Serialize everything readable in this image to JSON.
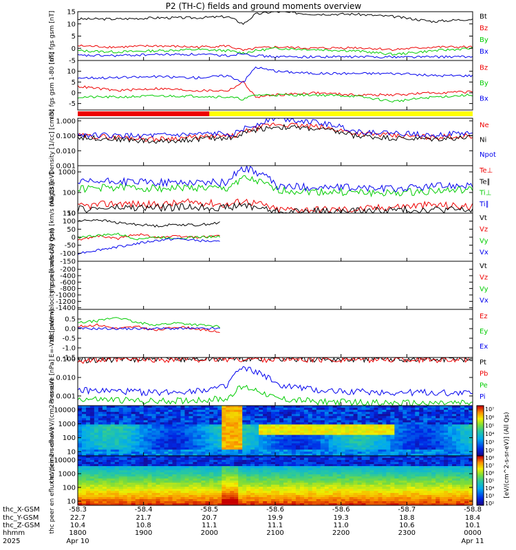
{
  "title": "P2 (TH-C) fields and ground moments overview",
  "colors": {
    "black": "#000000",
    "red": "#ee0000",
    "green": "#00cc00",
    "blue": "#0000ee",
    "yellow": "#ffff00"
  },
  "status_bar": [
    {
      "from": "1800",
      "to": "2000",
      "color": "#ee0000"
    },
    {
      "from": "2000",
      "to": "0000",
      "color": "#ffff00"
    }
  ],
  "chart_data": [
    {
      "type": "line",
      "ylabel": "thc fgs gsm [nT]",
      "ylim": [
        -5,
        15
      ],
      "yticks": [
        "15",
        "10",
        "5",
        "0",
        "-5"
      ],
      "ytick_values": [
        15,
        10,
        5,
        0,
        -5
      ],
      "series": [
        {
          "name": "Bt",
          "color": "#000000",
          "x": [
            0,
            0.1,
            0.2,
            0.3,
            0.38,
            0.42,
            0.45,
            0.5,
            0.6,
            0.7,
            0.8,
            0.9,
            1.0
          ],
          "values": [
            12,
            12,
            12.5,
            12.5,
            13,
            10,
            14,
            15,
            14,
            14,
            13,
            11,
            12
          ]
        },
        {
          "name": "Bz",
          "color": "#ee0000",
          "x": [
            0,
            0.1,
            0.2,
            0.3,
            0.38,
            0.42,
            0.45,
            0.5,
            0.6,
            0.7,
            0.8,
            0.9,
            1.0
          ],
          "values": [
            1,
            0.5,
            1,
            0.5,
            1,
            -1,
            0,
            0.5,
            0,
            0.3,
            -0.5,
            0.5,
            0.5
          ]
        },
        {
          "name": "By",
          "color": "#00cc00",
          "x": [
            0,
            0.1,
            0.2,
            0.3,
            0.38,
            0.42,
            0.45,
            0.5,
            0.6,
            0.7,
            0.8,
            0.9,
            1.0
          ],
          "values": [
            -1,
            -1.5,
            -1,
            -0.5,
            -1,
            -2,
            -1,
            0,
            -0.5,
            -1,
            -2.5,
            -1,
            0
          ]
        },
        {
          "name": "Bx",
          "color": "#0000ee",
          "x": [
            0,
            0.1,
            0.2,
            0.3,
            0.38,
            0.42,
            0.45,
            0.5,
            0.6,
            0.7,
            0.8,
            0.9,
            1.0
          ],
          "values": [
            -3,
            -3,
            -2.5,
            -2.5,
            -3,
            -2,
            -3,
            -3.5,
            -3.5,
            -3.5,
            -3.5,
            -3.5,
            -3.5
          ]
        }
      ]
    },
    {
      "type": "line",
      "ylabel": "thc fgs gsm 1-80 [nT]",
      "ylim": [
        -8,
        15
      ],
      "yticks": [
        "10",
        "5",
        "0",
        "-5"
      ],
      "ytick_values": [
        10,
        5,
        0,
        -5
      ],
      "series": [
        {
          "name": "Bz",
          "color": "#ee0000",
          "x": [
            0,
            0.1,
            0.2,
            0.3,
            0.38,
            0.42,
            0.45,
            0.5,
            0.6,
            0.7,
            0.8,
            0.9,
            1.0
          ],
          "values": [
            3,
            1,
            2,
            1,
            1,
            5,
            -2,
            -1,
            0,
            -1,
            -1,
            0,
            0.5
          ]
        },
        {
          "name": "By",
          "color": "#00cc00",
          "x": [
            0,
            0.1,
            0.2,
            0.3,
            0.38,
            0.42,
            0.45,
            0.5,
            0.6,
            0.7,
            0.8,
            0.9,
            1.0
          ],
          "values": [
            -2,
            -2,
            -1.5,
            -1.5,
            -2,
            -3,
            -1,
            -1,
            -1,
            -1.5,
            -4,
            -2,
            -1
          ]
        },
        {
          "name": "Bx",
          "color": "#0000ee",
          "x": [
            0,
            0.1,
            0.2,
            0.3,
            0.38,
            0.42,
            0.45,
            0.5,
            0.6,
            0.7,
            0.8,
            0.9,
            1.0
          ],
          "values": [
            7,
            7,
            7.5,
            7,
            8,
            5,
            12,
            10,
            9,
            9,
            9,
            8,
            8
          ]
        }
      ]
    },
    {
      "type": "line",
      "ylabel": "Density [1/cc] [cm-3]",
      "yscale": "log",
      "ylim": [
        0.001,
        1.5
      ],
      "yticks": [
        "1.000",
        "0.100",
        "0.010",
        "0.001"
      ],
      "ytick_values": [
        1.0,
        0.1,
        0.01,
        0.001
      ],
      "series": [
        {
          "name": "Ne",
          "color": "#ee0000",
          "x": [
            0,
            0.1,
            0.2,
            0.3,
            0.4,
            0.45,
            0.5,
            0.6,
            0.7,
            0.8,
            0.9,
            1.0
          ],
          "values": [
            0.1,
            0.08,
            0.06,
            0.08,
            0.1,
            0.3,
            0.6,
            0.4,
            0.15,
            0.1,
            0.08,
            0.1
          ]
        },
        {
          "name": "Ni",
          "color": "#000000",
          "x": [
            0,
            0.1,
            0.2,
            0.3,
            0.4,
            0.45,
            0.5,
            0.6,
            0.7,
            0.8,
            0.9,
            1.0
          ],
          "values": [
            0.08,
            0.06,
            0.04,
            0.06,
            0.08,
            0.25,
            0.4,
            0.3,
            0.1,
            0.07,
            0.06,
            0.08
          ]
        },
        {
          "name": "Npot",
          "color": "#0000ee",
          "x": [
            0,
            0.1,
            0.2,
            0.3,
            0.4,
            0.45,
            0.5,
            0.6,
            0.7,
            0.8,
            0.9,
            1.0
          ],
          "values": [
            0.12,
            0.1,
            0.1,
            0.12,
            0.15,
            0.5,
            1.5,
            0.8,
            0.2,
            0.15,
            0.12,
            0.15
          ]
        }
      ]
    },
    {
      "type": "line",
      "ylabel": "magt3 [eV]",
      "yscale": "log",
      "ylim": [
        10,
        2000
      ],
      "yticks": [
        "1000",
        "100",
        "10"
      ],
      "ytick_values": [
        1000,
        100,
        10
      ],
      "series": [
        {
          "name": "Te⊥",
          "color": "#ee0000",
          "x": [
            0,
            0.1,
            0.2,
            0.3,
            0.38,
            0.42,
            0.5,
            0.6,
            0.7,
            0.8,
            0.9,
            1.0
          ],
          "values": [
            20,
            30,
            25,
            35,
            25,
            40,
            15,
            15,
            15,
            20,
            25,
            20
          ]
        },
        {
          "name": "Te∥",
          "color": "#000000",
          "x": [
            0,
            0.1,
            0.2,
            0.3,
            0.38,
            0.42,
            0.5,
            0.6,
            0.7,
            0.8,
            0.9,
            1.0
          ],
          "values": [
            15,
            18,
            18,
            20,
            18,
            25,
            12,
            12,
            12,
            14,
            15,
            14
          ]
        },
        {
          "name": "Ti⊥",
          "color": "#00cc00",
          "x": [
            0,
            0.1,
            0.2,
            0.3,
            0.38,
            0.42,
            0.5,
            0.6,
            0.7,
            0.8,
            0.9,
            1.0
          ],
          "values": [
            150,
            180,
            160,
            170,
            150,
            500,
            130,
            110,
            100,
            90,
            120,
            130
          ]
        },
        {
          "name": "Ti∥",
          "color": "#0000ee",
          "x": [
            0,
            0.1,
            0.2,
            0.3,
            0.38,
            0.42,
            0.5,
            0.6,
            0.7,
            0.8,
            0.9,
            1.0
          ],
          "values": [
            300,
            350,
            300,
            320,
            300,
            1500,
            200,
            180,
            170,
            150,
            200,
            250
          ]
        }
      ]
    },
    {
      "type": "line",
      "ylabel": "thc peir velocity gsm [km/s (All Qs)]",
      "ylim": [
        -150,
        150
      ],
      "yticks": [
        "150",
        "100",
        "50",
        "0",
        "-50",
        "-100",
        "-150"
      ],
      "ytick_values": [
        150,
        100,
        50,
        0,
        -50,
        -100,
        -150
      ],
      "series": [
        {
          "name": "Vt",
          "color": "#000000",
          "x": [
            0,
            0.05,
            0.1,
            0.15,
            0.2,
            0.25,
            0.3,
            0.36
          ],
          "values": [
            100,
            110,
            90,
            80,
            70,
            80,
            75,
            90
          ]
        },
        {
          "name": "Vz",
          "color": "#ee0000",
          "x": [
            0,
            0.05,
            0.1,
            0.15,
            0.2,
            0.25,
            0.3,
            0.36
          ],
          "values": [
            -20,
            10,
            -10,
            20,
            0,
            5,
            0,
            10
          ]
        },
        {
          "name": "Vy",
          "color": "#00cc00",
          "x": [
            0,
            0.05,
            0.1,
            0.15,
            0.2,
            0.25,
            0.3,
            0.36
          ],
          "values": [
            0,
            10,
            20,
            -10,
            0,
            -5,
            0,
            5
          ]
        },
        {
          "name": "Vx",
          "color": "#0000ee",
          "x": [
            0,
            0.05,
            0.1,
            0.15,
            0.2,
            0.25,
            0.3,
            0.36
          ],
          "values": [
            -100,
            -80,
            -60,
            -40,
            -20,
            -10,
            -20,
            -30
          ]
        }
      ]
    },
    {
      "type": "line",
      "ylabel": "thc peer velocity gsm [km/s (All Qs)]",
      "ylim": [
        -1450,
        50
      ],
      "yticks": [
        "-200",
        "-400",
        "-600",
        "-800",
        "-1000",
        "-1200",
        "-1400"
      ],
      "ytick_values": [
        -200,
        -400,
        -600,
        -800,
        -1000,
        -1200,
        -1400
      ],
      "series": [
        {
          "name": "Vt",
          "color": "#000000",
          "x": [],
          "values": []
        },
        {
          "name": "Vz",
          "color": "#ee0000",
          "x": [],
          "values": []
        },
        {
          "name": "Vy",
          "color": "#00cc00",
          "x": [],
          "values": []
        },
        {
          "name": "Vx",
          "color": "#0000ee",
          "x": [],
          "values": []
        }
      ]
    },
    {
      "type": "line",
      "ylabel": "E=-VxB [mV/m]",
      "ylim": [
        -1.5,
        1.0
      ],
      "yticks": [
        "0.5",
        "0.0",
        "-0.5",
        "-1.0",
        "-1.5"
      ],
      "ytick_values": [
        0.5,
        0.0,
        -0.5,
        -1.0,
        -1.5
      ],
      "series": [
        {
          "name": "Ez",
          "color": "#ee0000",
          "x": [
            0,
            0.05,
            0.1,
            0.15,
            0.2,
            0.25,
            0.3,
            0.36
          ],
          "values": [
            0.1,
            0.2,
            0,
            0.1,
            -0.1,
            0.1,
            0,
            -0.2
          ]
        },
        {
          "name": "Ey",
          "color": "#00cc00",
          "x": [
            0,
            0.05,
            0.1,
            0.15,
            0.2,
            0.25,
            0.3,
            0.36
          ],
          "values": [
            0.3,
            0.4,
            0.6,
            0.3,
            0.2,
            0.3,
            0.2,
            0.1
          ]
        },
        {
          "name": "Ex",
          "color": "#0000ee",
          "x": [
            0,
            0.05,
            0.1,
            0.15,
            0.2,
            0.25,
            0.3,
            0.36
          ],
          "values": [
            0,
            0,
            0,
            0,
            0,
            0,
            0,
            0
          ]
        }
      ]
    },
    {
      "type": "line",
      "ylabel": "Pressure [nPa]",
      "yscale": "log",
      "ylim": [
        0.0003,
        0.12
      ],
      "yticks": [
        "0.100",
        "0.010",
        "0.001"
      ],
      "ytick_values": [
        0.1,
        0.01,
        0.001
      ],
      "series": [
        {
          "name": "Pt",
          "color": "#000000",
          "x": [
            0,
            0.2,
            0.4,
            0.6,
            0.8,
            1.0
          ],
          "values": [
            0.09,
            0.1,
            0.11,
            0.1,
            0.1,
            0.1
          ]
        },
        {
          "name": "Pb",
          "color": "#ee0000",
          "x": [
            0,
            0.2,
            0.4,
            0.6,
            0.8,
            1.0
          ],
          "values": [
            0.085,
            0.095,
            0.1,
            0.095,
            0.095,
            0.095
          ]
        },
        {
          "name": "Pe",
          "color": "#00cc00",
          "x": [
            0,
            0.1,
            0.2,
            0.3,
            0.38,
            0.42,
            0.5,
            0.6,
            0.8,
            1.0
          ],
          "values": [
            0.0007,
            0.0006,
            0.0005,
            0.0006,
            0.0007,
            0.003,
            0.0007,
            0.0005,
            0.0004,
            0.0004
          ]
        },
        {
          "name": "Pi",
          "color": "#0000ee",
          "x": [
            0,
            0.1,
            0.2,
            0.3,
            0.38,
            0.42,
            0.5,
            0.6,
            0.8,
            1.0
          ],
          "values": [
            0.002,
            0.0018,
            0.0015,
            0.002,
            0.003,
            0.03,
            0.004,
            0.002,
            0.0015,
            0.0015
          ]
        }
      ]
    },
    {
      "type": "heatmap",
      "ylabel": "thc peir en eflux eV/(cm2-s-sr-eV)",
      "yscale": "log",
      "ylim": [
        5,
        20000
      ],
      "yticks": [
        "10000",
        "1000",
        "100",
        "10"
      ],
      "ytick_values": [
        10000,
        1000,
        100,
        10
      ]
    },
    {
      "type": "heatmap",
      "ylabel": "thc peer en eflux eV/(cm2-s-sr-eV)",
      "yscale": "log",
      "ylim": [
        5,
        20000
      ],
      "yticks": [
        "10000",
        "1000",
        "100",
        "10"
      ],
      "ytick_values": [
        10000,
        1000,
        100,
        10
      ]
    }
  ],
  "colorbar": {
    "label": "[eV/(cm^2-s-sr-eV)] (All Qs)",
    "ticks": [
      "10⁷",
      "10⁶",
      "10⁵",
      "10⁴",
      "10³",
      "10²",
      "10⁸",
      "10⁷",
      "10⁶",
      "10⁵",
      "10⁴",
      "10³",
      "10²"
    ]
  },
  "x_axis": {
    "row_labels": [
      "thc_X-GSM",
      "thc_Y-GSM",
      "thc_Z-GSM",
      "hhmm",
      "2025"
    ],
    "columns": [
      {
        "values": [
          "-58.3",
          "22.7",
          "10.4",
          "1800",
          "Apr 10"
        ]
      },
      {
        "values": [
          "-58.4",
          "21.7",
          "10.8",
          "1900",
          ""
        ]
      },
      {
        "values": [
          "-58.5",
          "20.7",
          "11.1",
          "2000",
          ""
        ]
      },
      {
        "values": [
          "-58.6",
          "19.9",
          "11.1",
          "2100",
          ""
        ]
      },
      {
        "values": [
          "-58.6",
          "19.3",
          "11.0",
          "2200",
          ""
        ]
      },
      {
        "values": [
          "-58.7",
          "18.8",
          "10.6",
          "2300",
          ""
        ]
      },
      {
        "values": [
          "-58.8",
          "18.4",
          "10.1",
          "0000",
          "Apr 11"
        ]
      }
    ]
  }
}
